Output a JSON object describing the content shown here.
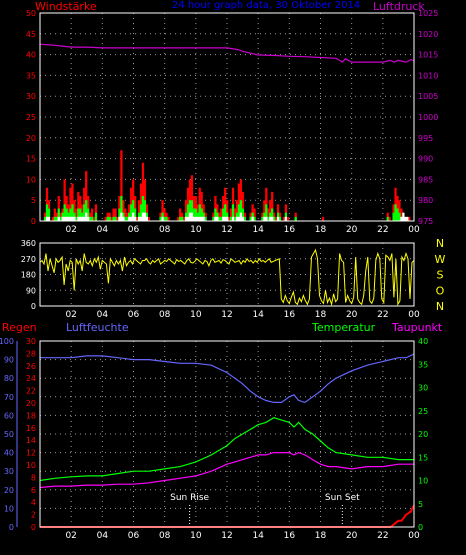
{
  "colors": {
    "background": "#000000",
    "frame": "#ffffff",
    "grid": "#9a9a9a",
    "wind": "#ff0000",
    "gust": "#00ff00",
    "mean_wind": "#ffffff",
    "pressure": "#cc00cc",
    "direction": "#ffff00",
    "rain": "#ff0000",
    "humidity": "#6666ff",
    "temperature": "#00ff00",
    "dewpoint": "#ff00ff",
    "title": "#0000ff"
  },
  "chart_data": [
    {
      "id": "wind_pressure",
      "type": "bar",
      "title": "24 hour graph data, 30 Oktober 2014",
      "left_label": "Windstärke",
      "right_label": "Luftdruck",
      "left_ylim": [
        0,
        50
      ],
      "left_ticks": [
        "0",
        "5",
        "10",
        "15",
        "20",
        "25",
        "30",
        "35",
        "40",
        "45",
        "50"
      ],
      "right_ylim": [
        975,
        1025
      ],
      "right_ticks": [
        "975",
        "980",
        "985",
        "990",
        "995",
        "1000",
        "1005",
        "1010",
        "1015",
        "1020",
        "1025"
      ],
      "wind_max": [
        0,
        0,
        2,
        8,
        5,
        0,
        1,
        3,
        2,
        6,
        2,
        3,
        10,
        6,
        4,
        8,
        9,
        5,
        3,
        7,
        6,
        4,
        8,
        12,
        6,
        2,
        3,
        1,
        4,
        0,
        0,
        0,
        0,
        1,
        2,
        2,
        1,
        3,
        3,
        1,
        6,
        17,
        5,
        3,
        2,
        4,
        8,
        10,
        6,
        1,
        5,
        9,
        14,
        10,
        4,
        1,
        0,
        0,
        0,
        0,
        0,
        2,
        5,
        3,
        2,
        1,
        0,
        0,
        0,
        0,
        1,
        3,
        2,
        1,
        5,
        8,
        10,
        11,
        6,
        6,
        4,
        8,
        7,
        4,
        2,
        0,
        0,
        0,
        2,
        6,
        4,
        2,
        3,
        6,
        8,
        5,
        1,
        3,
        8,
        3,
        5,
        9,
        10,
        7,
        2,
        0,
        0,
        2,
        4,
        3,
        0,
        0,
        0,
        2,
        5,
        8,
        3,
        5,
        7,
        2,
        1,
        4,
        2,
        0,
        1,
        4,
        1,
        0,
        0,
        0,
        2,
        0,
        0,
        0,
        0,
        0,
        0,
        0,
        0,
        0,
        0,
        0,
        0,
        0,
        1,
        0,
        0,
        0,
        0,
        0,
        0,
        0,
        0,
        0,
        0,
        0,
        0,
        0,
        0,
        0,
        0,
        0,
        0,
        0,
        0,
        0,
        0,
        0,
        0,
        0,
        0,
        0,
        0,
        0,
        0,
        0,
        0,
        2,
        1,
        0,
        4,
        8,
        6,
        5,
        3,
        2,
        0,
        0,
        1,
        0,
        0
      ],
      "gust": [
        0,
        0,
        1,
        4,
        3,
        0,
        0,
        1,
        1,
        3,
        1,
        2,
        4,
        3,
        2,
        3,
        4,
        2,
        1,
        3,
        3,
        2,
        4,
        5,
        3,
        1,
        1,
        0,
        2,
        0,
        0,
        0,
        0,
        0,
        1,
        1,
        0,
        1,
        1,
        0,
        3,
        6,
        2,
        1,
        1,
        2,
        4,
        5,
        3,
        0,
        2,
        4,
        6,
        5,
        2,
        0,
        0,
        0,
        0,
        0,
        0,
        1,
        2,
        1,
        1,
        0,
        0,
        0,
        0,
        0,
        0,
        1,
        1,
        0,
        2,
        4,
        5,
        5,
        3,
        3,
        2,
        4,
        3,
        2,
        1,
        0,
        0,
        0,
        1,
        3,
        2,
        1,
        1,
        3,
        4,
        2,
        0,
        1,
        4,
        1,
        2,
        4,
        5,
        3,
        1,
        0,
        0,
        1,
        2,
        1,
        0,
        0,
        0,
        1,
        2,
        4,
        1,
        2,
        3,
        1,
        0,
        2,
        1,
        0,
        0,
        2,
        0,
        0,
        0,
        0,
        1,
        0,
        0,
        0,
        0,
        0,
        0,
        0,
        0,
        0,
        0,
        0,
        0,
        0,
        0,
        0,
        0,
        0,
        0,
        0,
        0,
        0,
        0,
        0,
        0,
        0,
        0,
        0,
        0,
        0,
        0,
        0,
        0,
        0,
        0,
        0,
        0,
        0,
        0,
        0,
        0,
        0,
        0,
        0,
        0,
        0,
        0,
        1,
        0,
        0,
        2,
        4,
        3,
        2,
        1,
        1,
        0,
        0,
        0,
        0,
        0
      ],
      "mean_wind": [
        0,
        0,
        0,
        1,
        1,
        0,
        0,
        0,
        0,
        1,
        0,
        1,
        1,
        1,
        1,
        1,
        1,
        1,
        0,
        1,
        1,
        1,
        1,
        2,
        1,
        0,
        0,
        0,
        0,
        0,
        0,
        0,
        0,
        0,
        0,
        0,
        0,
        0,
        0,
        0,
        1,
        2,
        1,
        0,
        0,
        1,
        1,
        2,
        1,
        0,
        1,
        1,
        2,
        2,
        1,
        0,
        0,
        0,
        0,
        0,
        0,
        0,
        1,
        0,
        0,
        0,
        0,
        0,
        0,
        0,
        0,
        0,
        0,
        0,
        1,
        1,
        2,
        2,
        1,
        1,
        1,
        1,
        1,
        1,
        0,
        0,
        0,
        0,
        0,
        1,
        1,
        0,
        0,
        1,
        1,
        1,
        0,
        0,
        1,
        0,
        1,
        1,
        2,
        1,
        0,
        0,
        0,
        0,
        1,
        0,
        0,
        0,
        0,
        0,
        1,
        1,
        0,
        1,
        1,
        0,
        0,
        1,
        0,
        0,
        0,
        1,
        0,
        0,
        0,
        0,
        0,
        0,
        0,
        0,
        0,
        0,
        0,
        0,
        0,
        0,
        0,
        0,
        0,
        0,
        0,
        0,
        0,
        0,
        0,
        0,
        0,
        0,
        0,
        0,
        0,
        0,
        0,
        0,
        0,
        0,
        0,
        0,
        0,
        0,
        0,
        0,
        0,
        0,
        0,
        0,
        0,
        0,
        0,
        0,
        0,
        0,
        0,
        0,
        0,
        0,
        0,
        0,
        0,
        0,
        1,
        2,
        1,
        1,
        0,
        0,
        0,
        0,
        0,
        0,
        0
      ],
      "pressure": {
        "hours": [
          0,
          1,
          2,
          3,
          4,
          5,
          6,
          7,
          8,
          9,
          10,
          11,
          12,
          12.7,
          13,
          14,
          15,
          16,
          17,
          18,
          19,
          19.4,
          19.6,
          20,
          21,
          22,
          22.5,
          22.7,
          23,
          23.5,
          23.8,
          24
        ],
        "hpa": [
          1017.5,
          1017.2,
          1016.8,
          1016.8,
          1016.6,
          1016.6,
          1016.6,
          1016.6,
          1016.6,
          1016.6,
          1016.6,
          1016.6,
          1016.6,
          1016.2,
          1015.8,
          1014.9,
          1014.8,
          1014.6,
          1014.5,
          1014.3,
          1014.1,
          1013.2,
          1014.0,
          1013.2,
          1013.2,
          1013.2,
          1013.6,
          1013.2,
          1013.6,
          1013.2,
          1013.8,
          1013.5
        ]
      }
    },
    {
      "id": "wind_direction",
      "type": "line",
      "left_ylim": [
        0,
        360
      ],
      "left_ticks": [
        "0",
        "90",
        "180",
        "270",
        "360"
      ],
      "right_ticks": [
        "N",
        "W",
        "S",
        "O",
        "N"
      ],
      "direction_deg": [
        250,
        260,
        240,
        300,
        200,
        270,
        230,
        190,
        270,
        250,
        260,
        280,
        120,
        240,
        200,
        260,
        250,
        90,
        270,
        240,
        260,
        200,
        300,
        250,
        240,
        260,
        230,
        270,
        250,
        280,
        210,
        260,
        250,
        240,
        130,
        270,
        250,
        230,
        260,
        240,
        260,
        200,
        280,
        230,
        250,
        260,
        240,
        270,
        260,
        250,
        240,
        260,
        260,
        270,
        250,
        240,
        260,
        250,
        260,
        270,
        240,
        250,
        260,
        255,
        270,
        260,
        250,
        240,
        265,
        255,
        260,
        250,
        240,
        260,
        270,
        250,
        245,
        255,
        270,
        260,
        250,
        240,
        260,
        255,
        230,
        260,
        270,
        250,
        255,
        260,
        245,
        265,
        260,
        250,
        240,
        270,
        260,
        250,
        255,
        260,
        240,
        260,
        250,
        270,
        255,
        260,
        245,
        260,
        250,
        270,
        255,
        260,
        250,
        260,
        270,
        250,
        255,
        260,
        265,
        270,
        40,
        20,
        60,
        30,
        15,
        50,
        80,
        20,
        10,
        45,
        25,
        60,
        30,
        10,
        40,
        280,
        300,
        320,
        270,
        60,
        30,
        15,
        90,
        20,
        45,
        10,
        70,
        25,
        40,
        300,
        260,
        250,
        20,
        60,
        30,
        15,
        50,
        280,
        40,
        20,
        10,
        60,
        200,
        280,
        30,
        15,
        45,
        260,
        300,
        270,
        40,
        20,
        290,
        280,
        260,
        300,
        50,
        270,
        10,
        30,
        280,
        260,
        300,
        270,
        40,
        250,
        260
      ],
      "direction_hours_end": 24
    },
    {
      "id": "temperature_humidity",
      "type": "line",
      "labels": {
        "rain": "Regen",
        "humidity": "Luftfeuchte",
        "temperature": "Temperatur",
        "dewpoint": "Taupunkt",
        "sunrise": "Sun Rise",
        "sunset": "Sun Set"
      },
      "humidity_ylim": [
        0,
        100
      ],
      "humidity_ticks": [
        "0",
        "10",
        "20",
        "30",
        "40",
        "50",
        "60",
        "70",
        "80",
        "90",
        "100"
      ],
      "rain_ylim": [
        0,
        30
      ],
      "rain_ticks": [
        "0",
        "2",
        "4",
        "6",
        "8",
        "10",
        "12",
        "14",
        "16",
        "18",
        "20",
        "22",
        "24",
        "26",
        "28",
        "30"
      ],
      "temp_ylim": [
        0,
        40
      ],
      "temp_ticks": [
        "0",
        "5",
        "10",
        "15",
        "20",
        "25",
        "30",
        "35",
        "40"
      ],
      "sunrise_hour": 9.6,
      "sunset_hour": 19.4,
      "x_hours": [
        0,
        1,
        2,
        3,
        4,
        5,
        6,
        7,
        8,
        9,
        10,
        11,
        12,
        12.5,
        13,
        13.5,
        14,
        14.5,
        15,
        15.5,
        16,
        16.3,
        16.6,
        17,
        17.5,
        18,
        18.5,
        19,
        20,
        21,
        22,
        23,
        23.5,
        24
      ],
      "humidity": [
        91,
        91,
        91,
        92,
        92,
        91,
        90,
        90,
        89,
        88,
        88,
        87,
        83,
        80,
        77,
        73,
        70,
        68,
        67,
        67,
        70,
        71,
        68,
        67,
        70,
        73,
        77,
        80,
        84,
        87,
        89,
        91,
        91,
        93
      ],
      "temperature": [
        10,
        10.5,
        10.8,
        11,
        11,
        11.5,
        12,
        12,
        12.5,
        13,
        14,
        15.5,
        17.5,
        19,
        20,
        21,
        22,
        22.5,
        23.5,
        23,
        22.5,
        21.5,
        22.5,
        21,
        20,
        18.5,
        17,
        16,
        15.5,
        15,
        15,
        14.5,
        14.5,
        14.5
      ],
      "dewpoint": [
        8.5,
        8.8,
        8.8,
        9,
        9,
        9.2,
        9.2,
        9.5,
        10,
        10.5,
        11,
        12,
        13.5,
        14,
        14.5,
        15,
        15.5,
        15.5,
        16,
        16,
        16,
        15.5,
        16,
        15.5,
        14.5,
        13.5,
        13,
        13,
        12.5,
        13,
        13,
        13.5,
        13.5,
        13.5
      ],
      "rain_hours": [
        0,
        22.5,
        23,
        23.2,
        23.5,
        23.8,
        24
      ],
      "rain_mm": [
        0,
        0,
        1,
        1,
        2,
        2.5,
        3.5
      ]
    }
  ],
  "x_axis": {
    "hours": [
      2,
      4,
      6,
      8,
      10,
      12,
      14,
      16,
      18,
      20,
      22,
      24
    ],
    "labels": [
      "02",
      "04",
      "06",
      "08",
      "10",
      "12",
      "14",
      "16",
      "18",
      "20",
      "22",
      "00"
    ]
  }
}
